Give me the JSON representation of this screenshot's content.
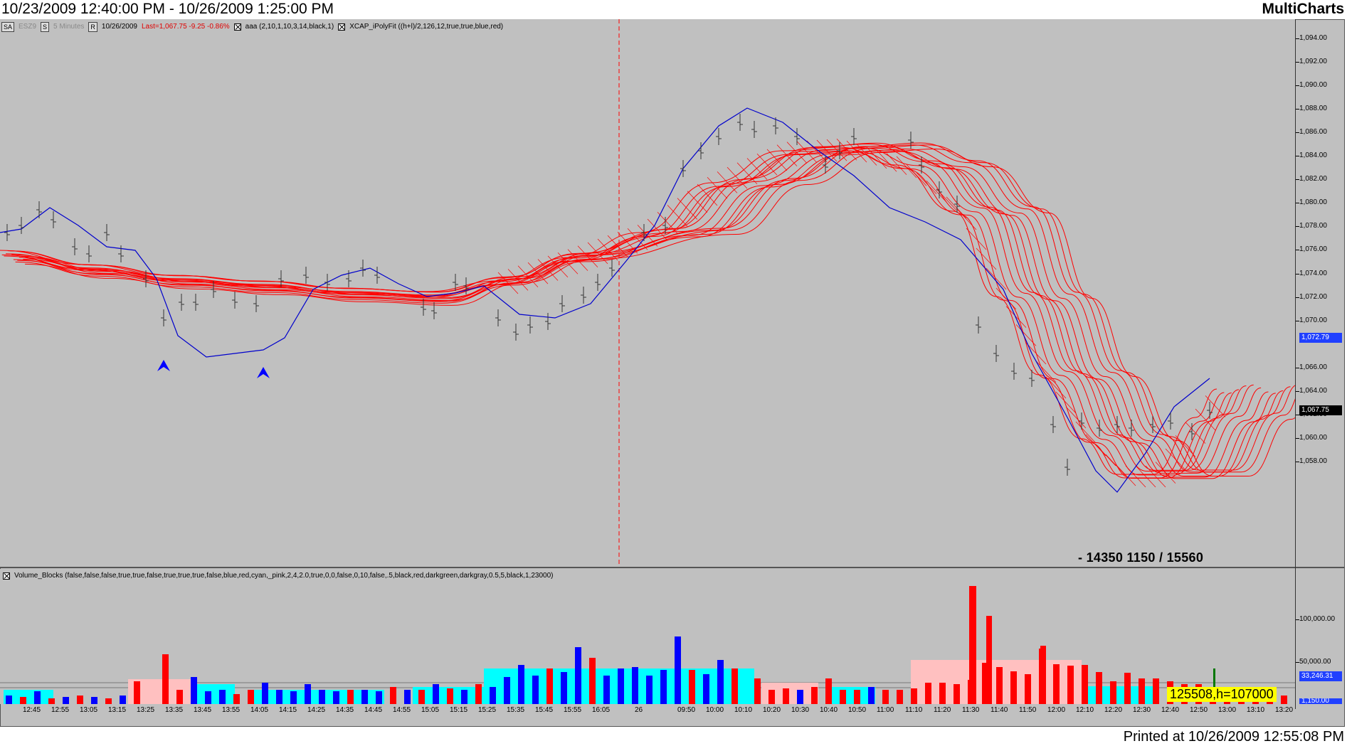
{
  "header": {
    "range": "10/23/2009 12:40:00 PM - 10/26/2009 1:25:00 PM",
    "brand": "MultiCharts"
  },
  "toolbar": {
    "symbol_btn": "SA",
    "symbol": "ESZ9",
    "style_btn": "S",
    "interval": "5 Minutes",
    "r_btn": "R",
    "date": "10/26/2009",
    "last": "Last=1,067.75  -9.25  -0.86%",
    "study1": "aaa  (2,10,1,10,3,14,black,1)",
    "study2": "XCAP_iPolyFit  ((h+l)/2,126,12,true,true,blue,red)"
  },
  "volume_toolbar": {
    "study": "Volume_Blocks  (false,false,false,true,true,false,true,true,true,false,blue,red,cyan,_pink,2,4,2.0,true,0,0,false,0,10,false,.5,black,red,darkgreen,darkgray,0.5,5,black,1,23000)"
  },
  "price_axis": [
    "1,094.00",
    "1,092.00",
    "1,090.00",
    "1,088.00",
    "1,086.00",
    "1,084.00",
    "1,082.00",
    "1,080.00",
    "1,078.00",
    "1,076.00",
    "1,074.00",
    "1,072.00",
    "1,070.00",
    "1,066.00",
    "1,064.00",
    "1,062.00",
    "1,060.00",
    "1,058.00"
  ],
  "price_tags": {
    "blue": "1,072.79",
    "black": "1,067.75"
  },
  "volume_axis": [
    "100,000.00",
    "50,000.00"
  ],
  "volume_tags": {
    "blue": "33,246.31",
    "bottom": "1,150.00"
  },
  "stats": {
    "price_line": "- 14350    1150 / 15560",
    "volume_box": "125508,h=107000"
  },
  "time_labels": [
    "12:45",
    "12:55",
    "13:05",
    "13:15",
    "13:25",
    "13:35",
    "13:45",
    "13:55",
    "14:05",
    "14:15",
    "14:25",
    "14:35",
    "14:45",
    "14:55",
    "15:05",
    "15:15",
    "15:25",
    "15:35",
    "15:45",
    "15:55",
    "16:05",
    "26",
    "09:50",
    "10:00",
    "10:10",
    "10:20",
    "10:30",
    "10:40",
    "10:50",
    "11:00",
    "11:10",
    "11:20",
    "11:30",
    "11:40",
    "11:50",
    "12:00",
    "12:10",
    "12:20",
    "12:30",
    "12:40",
    "12:50",
    "13:00",
    "13:10",
    "13:20"
  ],
  "footer": "Printed at 10/26/2009 12:55:08 PM",
  "colors": {
    "background": "#c0c0c0",
    "fit": "#ff0000",
    "price": "#0000cc",
    "up_vol": "#0000ff",
    "down_vol": "#ff0000",
    "cyan": "#00ffff",
    "pink": "#ffc0c0"
  }
}
